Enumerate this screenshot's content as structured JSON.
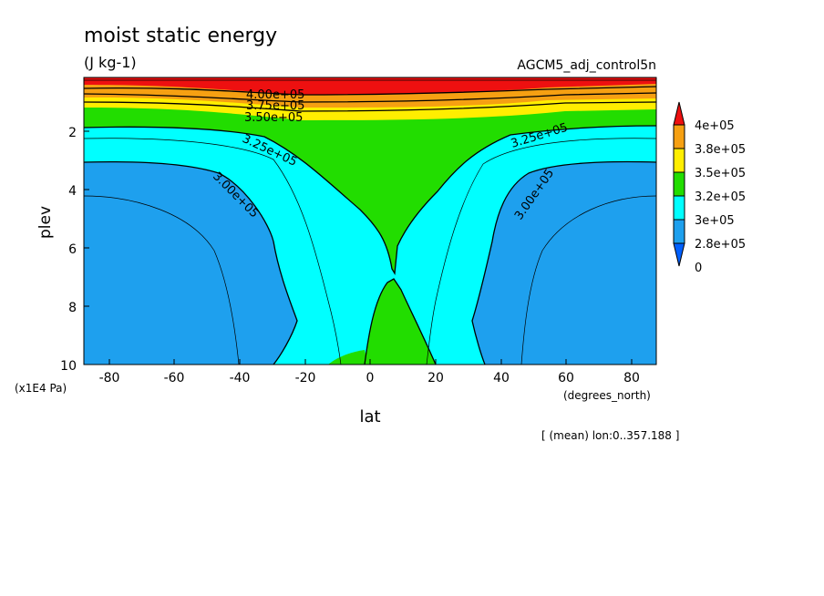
{
  "chart_data": {
    "type": "contour",
    "title": "moist static energy",
    "units": "(J kg-1)",
    "run_name": "AGCM5_adj_control5n",
    "xlabel": "lat",
    "x_unit_label": "(degrees_north)",
    "ylabel": "plev",
    "y_unit_label": "(x1E4 Pa)",
    "footnote": "[ (mean) lon:0..357.188 ]",
    "xlim": [
      -87.5,
      87.5
    ],
    "ylim": [
      10,
      0.1
    ],
    "x_ticks": [
      -80,
      -60,
      -40,
      -20,
      0,
      20,
      40,
      60,
      80
    ],
    "y_ticks": [
      2,
      4,
      6,
      8,
      10
    ],
    "colorbar": {
      "labels": [
        "4e+05",
        "3.8e+05",
        "3.5e+05",
        "3.2e+05",
        "3e+05",
        "2.8e+05",
        "0"
      ],
      "colors": [
        "#ee1010",
        "#f6a012",
        "#ffee00",
        "#22dd00",
        "#00ffff",
        "#1ea0ee",
        "#0060ff"
      ]
    },
    "contour_labels": [
      {
        "text": "4.00e+05",
        "lat": 6,
        "plev": 0.4
      },
      {
        "text": "3.75e+05",
        "lat": 6,
        "plev": 0.75
      },
      {
        "text": "3.50e+05",
        "lat": 6,
        "plev": 1.1
      },
      {
        "text": "3.25e+05",
        "lat": -30,
        "plev": 2.3
      },
      {
        "text": "3.25e+05",
        "lat": 50,
        "plev": 2.0
      },
      {
        "text": "3.00e+05",
        "lat": -37,
        "plev": 4.0
      },
      {
        "text": "3.00e+05",
        "lat": 48,
        "plev": 4.0
      }
    ]
  }
}
